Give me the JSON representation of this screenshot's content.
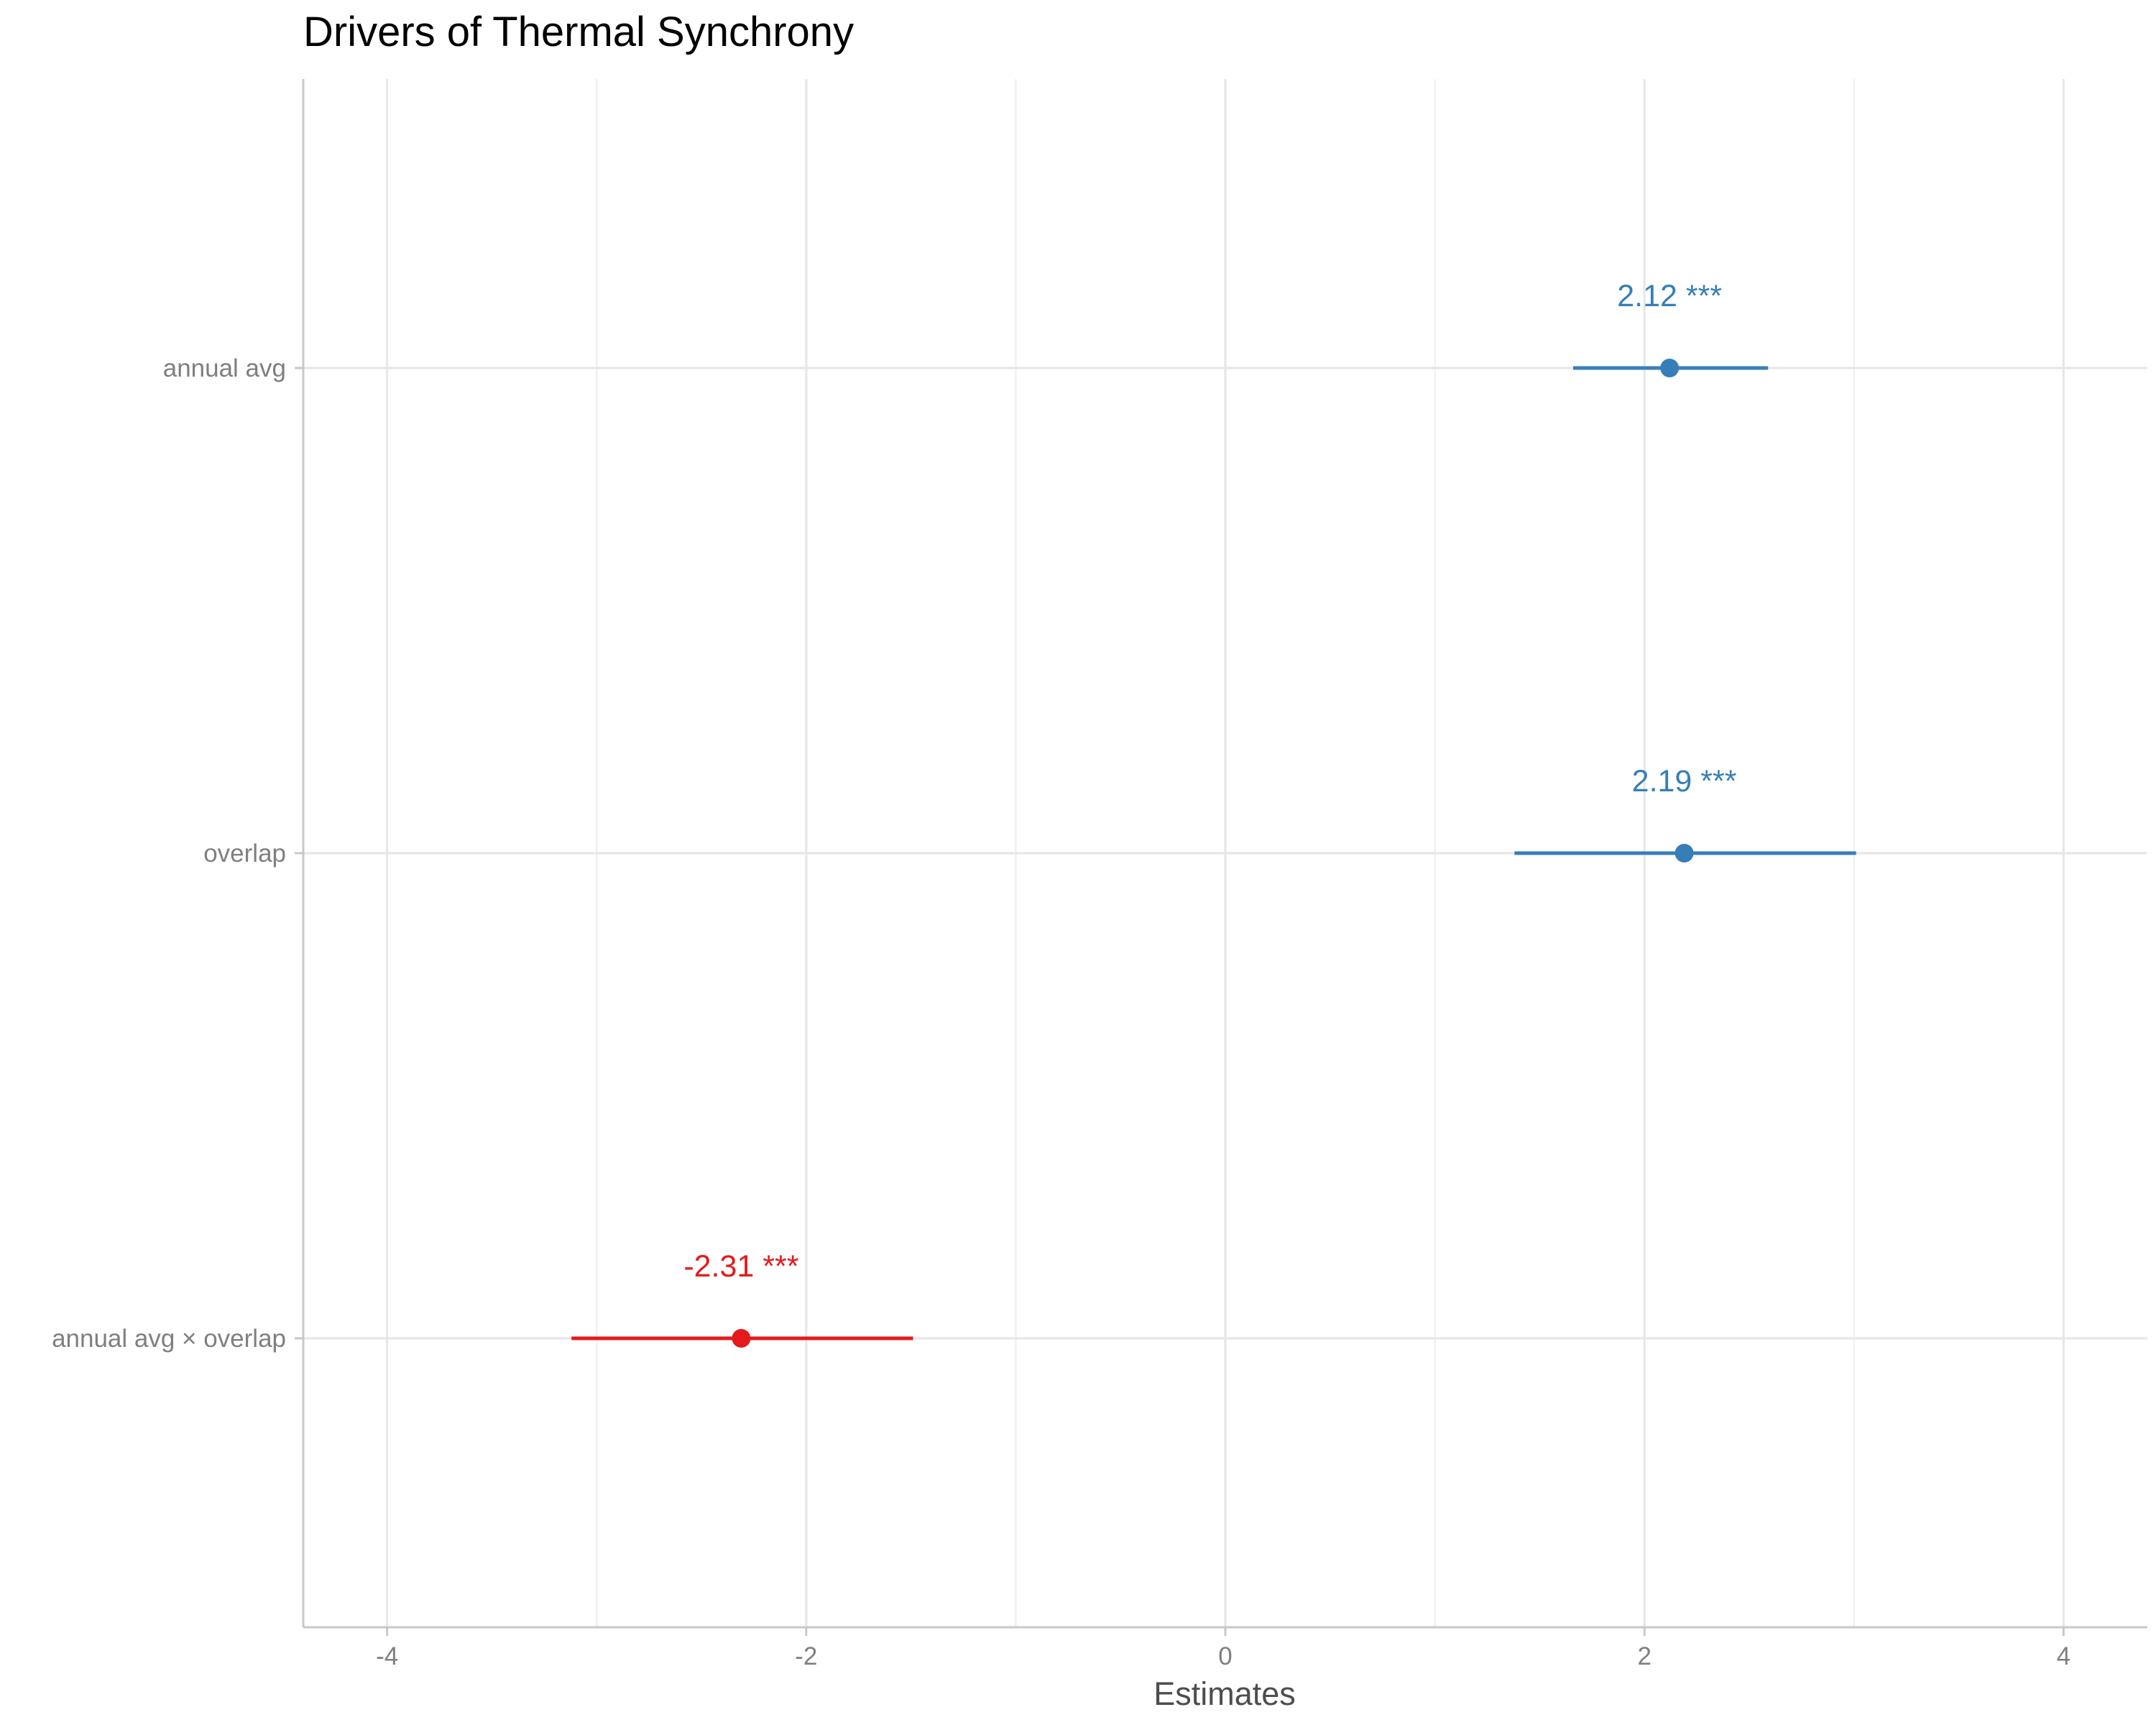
{
  "chart_data": {
    "type": "forest",
    "title": "Drivers of Thermal Synchrony",
    "xlabel": "Estimates",
    "ylabel": "",
    "xlim": [
      -4.4,
      4.4
    ],
    "xticks": [
      -4,
      -2,
      0,
      2,
      4
    ],
    "xtick_labels": [
      "-4",
      "-2",
      "0",
      "2",
      "4"
    ],
    "grid": true,
    "legend": "none",
    "colors": {
      "positive": "#377eb8",
      "negative": "#e41a1c"
    },
    "terms": [
      {
        "label": "annual avg",
        "estimate": 2.12,
        "ci_low": 1.66,
        "ci_high": 2.59,
        "value_label": "2.12 ***",
        "sign": "positive"
      },
      {
        "label": "overlap",
        "estimate": 2.19,
        "ci_low": 1.38,
        "ci_high": 3.01,
        "value_label": "2.19 ***",
        "sign": "positive"
      },
      {
        "label": "annual avg × overlap",
        "estimate": -2.31,
        "ci_low": -3.12,
        "ci_high": -1.49,
        "value_label": "-2.31 ***",
        "sign": "negative"
      }
    ]
  }
}
